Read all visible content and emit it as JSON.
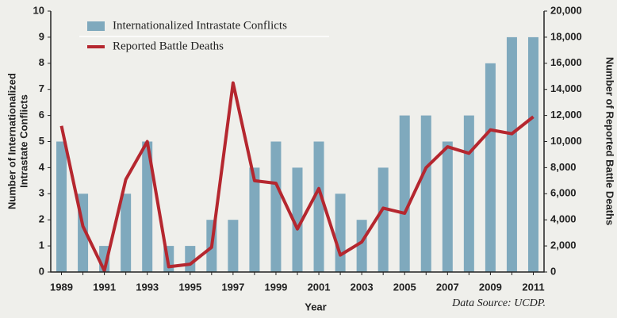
{
  "chart_data": {
    "type": "bar_line",
    "xlabel": "Year",
    "ylabel": [
      "Number of Internationalized",
      "Intrastate Conflicts"
    ],
    "y2label": "Number of Reported Battle Deaths",
    "annotation": "Data Source: UCDP.",
    "categories": [
      "1989",
      null,
      "1991",
      null,
      "1993",
      null,
      "1995",
      null,
      "1997",
      null,
      "1999",
      null,
      "2001",
      null,
      "2003",
      null,
      "2005",
      null,
      "2007",
      null,
      "2009",
      null,
      "2011"
    ],
    "series": [
      {
        "name": "Internationalized Intrastate Conflicts",
        "color": "#7fa9bd",
        "type": "bar",
        "values": [
          5,
          3,
          1,
          3,
          5,
          1,
          1,
          2,
          2,
          4,
          5,
          4,
          5,
          3,
          2,
          4,
          6,
          6,
          5,
          6,
          8,
          9,
          9
        ]
      },
      {
        "name": "Reported Battle Deaths",
        "color": "#b5272f",
        "type": "line",
        "axis": "y2",
        "values": [
          11200,
          3500,
          100,
          7100,
          10000,
          400,
          600,
          1900,
          14500,
          7000,
          6800,
          3300,
          6400,
          1300,
          2300,
          4900,
          4500,
          8000,
          9600,
          9100,
          10900,
          10600,
          11900
        ]
      }
    ],
    "ylim": [
      0,
      10
    ],
    "yticks": [
      0,
      1,
      2,
      3,
      4,
      5,
      6,
      7,
      8,
      9,
      10
    ],
    "y2lim": [
      0,
      20000
    ],
    "y2ticks": [
      0,
      {
        "value": 2000,
        "label": "2,000"
      },
      {
        "value": 4000,
        "label": "4,000"
      },
      {
        "value": 6000,
        "label": "6,000"
      },
      {
        "value": 8000,
        "label": "8,000"
      },
      {
        "value": 10000,
        "label": "10,000"
      },
      {
        "value": 12000,
        "label": "12,000"
      },
      {
        "value": 14000,
        "label": "14,000"
      },
      {
        "value": 16000,
        "label": "16,000"
      },
      {
        "value": 18000,
        "label": "18,000"
      },
      {
        "value": 20000,
        "label": "20,000"
      }
    ],
    "grid": false,
    "legend": "upper left"
  }
}
